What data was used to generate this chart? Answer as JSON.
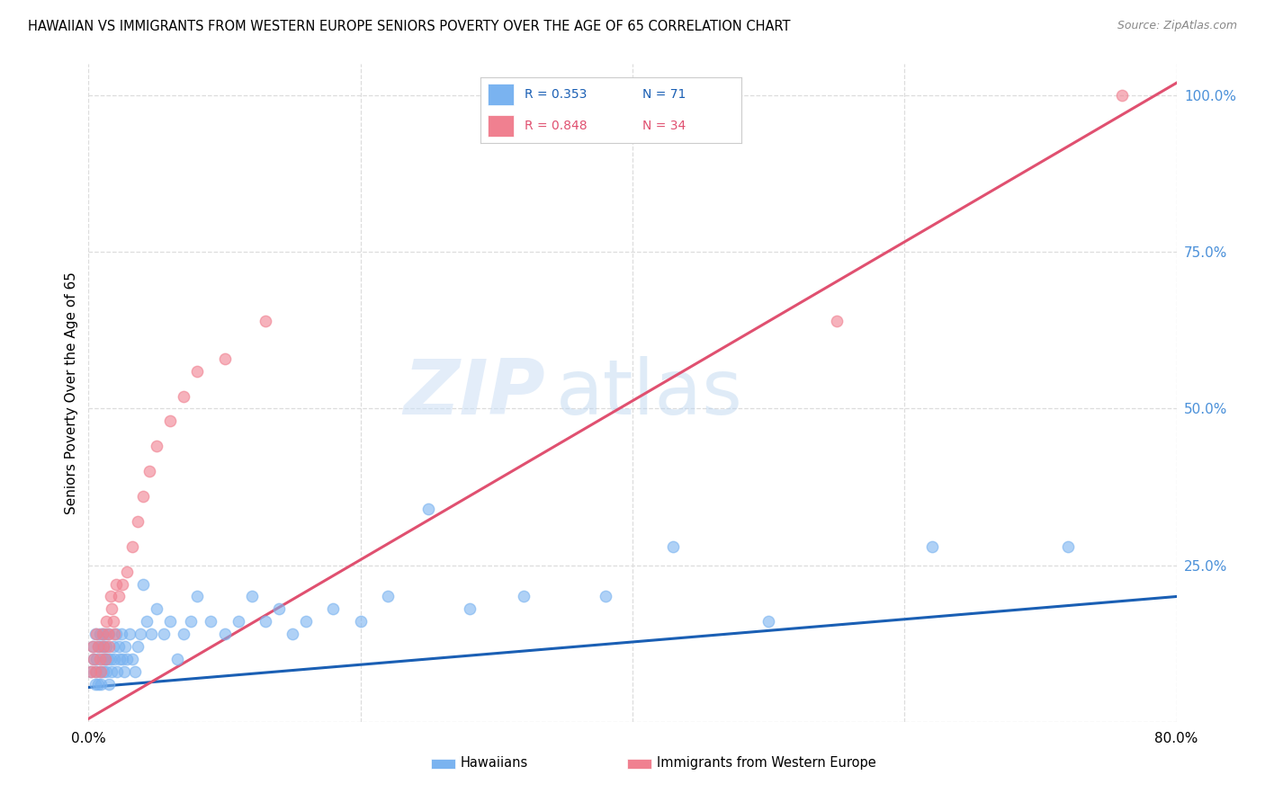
{
  "title": "HAWAIIAN VS IMMIGRANTS FROM WESTERN EUROPE SENIORS POVERTY OVER THE AGE OF 65 CORRELATION CHART",
  "source": "Source: ZipAtlas.com",
  "ylabel": "Seniors Poverty Over the Age of 65",
  "xlim": [
    0.0,
    0.8
  ],
  "ylim": [
    0.0,
    1.05
  ],
  "xticks": [
    0.0,
    0.2,
    0.4,
    0.6,
    0.8
  ],
  "xticklabels": [
    "0.0%",
    "",
    "",
    "",
    "80.0%"
  ],
  "ytick_positions": [
    0.0,
    0.25,
    0.5,
    0.75,
    1.0
  ],
  "ytick_labels_right": [
    "",
    "25.0%",
    "50.0%",
    "75.0%",
    "100.0%"
  ],
  "watermark_zip": "ZIP",
  "watermark_atlas": "atlas",
  "legend_r1": "R = 0.353",
  "legend_n1": "N = 71",
  "legend_r2": "R = 0.848",
  "legend_n2": "N = 34",
  "hawaiian_color": "#7ab3f0",
  "western_europe_color": "#f08090",
  "hawaiian_line_color": "#1a5fb4",
  "western_europe_line_color": "#e05070",
  "background_color": "#ffffff",
  "grid_color": "#dddddd",
  "hawaiian_label": "Hawaiians",
  "western_europe_label": "Immigrants from Western Europe",
  "hawaiian_x": [
    0.002,
    0.003,
    0.004,
    0.005,
    0.005,
    0.006,
    0.006,
    0.007,
    0.007,
    0.008,
    0.008,
    0.009,
    0.009,
    0.01,
    0.01,
    0.011,
    0.011,
    0.012,
    0.012,
    0.013,
    0.013,
    0.014,
    0.015,
    0.015,
    0.016,
    0.017,
    0.018,
    0.019,
    0.02,
    0.021,
    0.022,
    0.023,
    0.024,
    0.025,
    0.026,
    0.027,
    0.028,
    0.03,
    0.032,
    0.034,
    0.036,
    0.038,
    0.04,
    0.043,
    0.046,
    0.05,
    0.055,
    0.06,
    0.065,
    0.07,
    0.075,
    0.08,
    0.09,
    0.1,
    0.11,
    0.12,
    0.13,
    0.14,
    0.15,
    0.16,
    0.18,
    0.2,
    0.22,
    0.25,
    0.28,
    0.32,
    0.38,
    0.43,
    0.5,
    0.62,
    0.72
  ],
  "hawaiian_y": [
    0.08,
    0.12,
    0.1,
    0.06,
    0.14,
    0.1,
    0.08,
    0.12,
    0.06,
    0.14,
    0.08,
    0.12,
    0.06,
    0.14,
    0.1,
    0.08,
    0.12,
    0.1,
    0.14,
    0.08,
    0.12,
    0.1,
    0.06,
    0.14,
    0.1,
    0.08,
    0.12,
    0.1,
    0.14,
    0.08,
    0.12,
    0.1,
    0.14,
    0.1,
    0.08,
    0.12,
    0.1,
    0.14,
    0.1,
    0.08,
    0.12,
    0.14,
    0.22,
    0.16,
    0.14,
    0.18,
    0.14,
    0.16,
    0.1,
    0.14,
    0.16,
    0.2,
    0.16,
    0.14,
    0.16,
    0.2,
    0.16,
    0.18,
    0.14,
    0.16,
    0.18,
    0.16,
    0.2,
    0.34,
    0.18,
    0.2,
    0.2,
    0.28,
    0.16,
    0.28,
    0.28
  ],
  "western_x": [
    0.002,
    0.003,
    0.004,
    0.005,
    0.006,
    0.007,
    0.008,
    0.009,
    0.01,
    0.011,
    0.012,
    0.013,
    0.014,
    0.015,
    0.016,
    0.017,
    0.018,
    0.019,
    0.02,
    0.022,
    0.025,
    0.028,
    0.032,
    0.036,
    0.04,
    0.045,
    0.05,
    0.06,
    0.07,
    0.08,
    0.1,
    0.13,
    0.55,
    0.76
  ],
  "western_y": [
    0.08,
    0.12,
    0.1,
    0.08,
    0.14,
    0.12,
    0.1,
    0.08,
    0.14,
    0.12,
    0.1,
    0.16,
    0.14,
    0.12,
    0.2,
    0.18,
    0.16,
    0.14,
    0.22,
    0.2,
    0.22,
    0.24,
    0.28,
    0.32,
    0.36,
    0.4,
    0.44,
    0.48,
    0.52,
    0.56,
    0.58,
    0.64,
    0.64,
    1.0
  ],
  "hawaiian_trend_x": [
    0.0,
    0.8
  ],
  "hawaiian_trend_y": [
    0.055,
    0.2
  ],
  "western_trend_x": [
    0.0,
    0.8
  ],
  "western_trend_y": [
    0.005,
    1.02
  ]
}
